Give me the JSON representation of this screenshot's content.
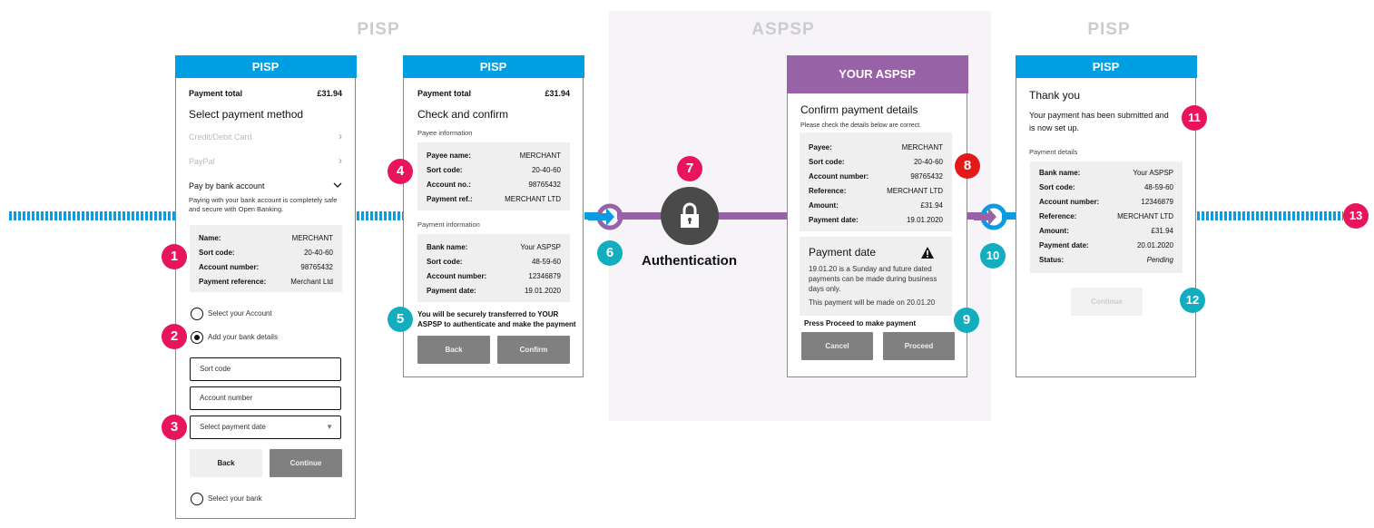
{
  "sections": {
    "pisp_left": "PISP",
    "aspsp": "ASPSP",
    "pisp_right": "PISP"
  },
  "colors": {
    "pisp_blue": "#009ee2",
    "aspsp_purple": "#9763a6",
    "badge_pink": "#e8155c",
    "badge_teal": "#12aebf",
    "badge_red": "#e41a1a"
  },
  "screen1": {
    "header": "PISP",
    "total_label": "Payment total",
    "total_value": "£31.94",
    "title": "Select payment method",
    "methods": [
      {
        "label": "Credit/Debit Card",
        "icon": "chevron-right-icon"
      },
      {
        "label": "PayPal",
        "icon": "chevron-right-icon"
      },
      {
        "label": "Pay by bank account",
        "icon": "chevron-down-icon"
      }
    ],
    "bank_note": "Paying with your bank account is completely safe and secure with Open Banking.",
    "details": [
      {
        "k": "Name:",
        "v": "MERCHANT"
      },
      {
        "k": "Sort code:",
        "v": "20-40-60"
      },
      {
        "k": "Account number:",
        "v": "98765432"
      },
      {
        "k": "Payment reference:",
        "v": "Merchant Ltd"
      }
    ],
    "options": [
      {
        "label": "Select your Account",
        "selected": false
      },
      {
        "label": "Add your bank details",
        "selected": true
      },
      {
        "label": "Select your bank",
        "selected": false
      }
    ],
    "sort_code_placeholder": "Sort code",
    "account_placeholder": "Account number",
    "date_placeholder": "Select payment date",
    "back": "Back",
    "continue": "Continue"
  },
  "screen2": {
    "header": "PISP",
    "total_label": "Payment total",
    "total_value": "£31.94",
    "title": "Check and confirm",
    "payee_heading": "Payee information",
    "payee": [
      {
        "k": "Payee name:",
        "v": "MERCHANT"
      },
      {
        "k": "Sort code:",
        "v": "20-40-60"
      },
      {
        "k": "Account no.:",
        "v": "98765432"
      },
      {
        "k": "Payment ref.:",
        "v": "MERCHANT LTD"
      }
    ],
    "payment_heading": "Payment information",
    "payment": [
      {
        "k": "Bank name:",
        "v": "Your ASPSP"
      },
      {
        "k": "Sort code:",
        "v": "48-59-60"
      },
      {
        "k": "Account number:",
        "v": "12346879"
      },
      {
        "k": "Payment date:",
        "v": "19.01.2020"
      }
    ],
    "transfer_note_1": "You will be securely transferred to YOUR",
    "transfer_note_2": "ASPSP to authenticate and make the payment",
    "back": "Back",
    "confirm": "Confirm"
  },
  "auth": {
    "label": "Authentication",
    "icon": "lock-icon"
  },
  "screen3": {
    "header": "YOUR ASPSP",
    "title": "Confirm payment details",
    "subtitle": "Please check the details below are correct.",
    "details": [
      {
        "k": "Payee:",
        "v": "MERCHANT"
      },
      {
        "k": "Sort code:",
        "v": "20-40-60"
      },
      {
        "k": "Account number:",
        "v": "98765432"
      },
      {
        "k": "Reference:",
        "v": "MERCHANT LTD"
      },
      {
        "k": "Amount:",
        "v": "£31.94"
      },
      {
        "k": "Payment date:",
        "v": "19.01.2020"
      }
    ],
    "warning_title": "Payment date",
    "warning_l1": "19.01.20 is a Sunday and future dated",
    "warning_l2": "payments can be made during business",
    "warning_l3": "days only.",
    "warning_l4": "This payment will be made on 20.01.20",
    "proceed_note": "Press Proceed to make payment",
    "cancel": "Cancel",
    "proceed": "Proceed"
  },
  "screen4": {
    "header": "PISP",
    "title": "Thank you",
    "message_1": "Your payment has been submitted and",
    "message_2": "is now set up.",
    "details_heading": "Payment details",
    "details": [
      {
        "k": "Bank name:",
        "v": "Your ASPSP"
      },
      {
        "k": "Sort code:",
        "v": "48-59-60"
      },
      {
        "k": "Account number:",
        "v": "12346879"
      },
      {
        "k": "Reference:",
        "v": "MERCHANT LTD"
      },
      {
        "k": "Amount:",
        "v": "£31.94"
      },
      {
        "k": "Payment date:",
        "v": "20.01.2020"
      },
      {
        "k": "Status:",
        "v": "Pending"
      }
    ],
    "continue": "Continue"
  },
  "badges": [
    "1",
    "2",
    "3",
    "4",
    "5",
    "6",
    "7",
    "8",
    "9",
    "10",
    "11",
    "12",
    "13"
  ]
}
